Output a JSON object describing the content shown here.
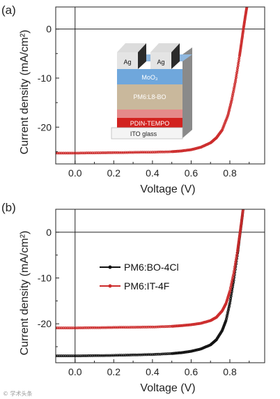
{
  "colors": {
    "black_series": "#111111",
    "red_series": "#cc2b2b",
    "axis": "#222222"
  },
  "watermark": "© 学术头条",
  "chart_data": [
    {
      "panel_label": "(a)",
      "type": "line",
      "xlabel": "Voltage (V)",
      "ylabel": "Current density (mA/cm²)",
      "xlim": [
        -0.1,
        0.98
      ],
      "ylim": [
        -27.5,
        4.5
      ],
      "xticks": [
        0.0,
        0.2,
        0.4,
        0.6,
        0.8
      ],
      "xtick_labels": [
        "0.0",
        "0.2",
        "0.4",
        "0.6",
        "0.8"
      ],
      "yticks": [
        0,
        -10,
        -20
      ],
      "ytick_labels": [
        "0",
        "-10",
        "-20"
      ],
      "zero_lines": true,
      "series": [
        {
          "color": "#cc2b2b",
          "x": [
            -0.1,
            0.0,
            0.1,
            0.2,
            0.3,
            0.4,
            0.5,
            0.55,
            0.6,
            0.65,
            0.7,
            0.73,
            0.76,
            0.79,
            0.81,
            0.83,
            0.85,
            0.86,
            0.87,
            0.88,
            0.89,
            0.9
          ],
          "y": [
            -25.3,
            -25.3,
            -25.25,
            -25.2,
            -25.15,
            -25.1,
            -25.0,
            -24.85,
            -24.6,
            -24.1,
            -23.2,
            -22.2,
            -20.6,
            -17.6,
            -14.4,
            -10.4,
            -5.5,
            -2.8,
            0.0,
            2.6,
            5.0,
            7.0
          ]
        }
      ],
      "inset": {
        "layers": [
          "Ag",
          "Ag",
          "MoO₃",
          "PM6:L8-BO",
          "PDIN-TEMPO",
          "ITO glass"
        ]
      }
    },
    {
      "panel_label": "(b)",
      "type": "line",
      "xlabel": "Voltage (V)",
      "ylabel": "Current density (mA/cm²)",
      "xlim": [
        -0.1,
        0.98
      ],
      "ylim": [
        -28.5,
        5.0
      ],
      "xticks": [
        0.0,
        0.2,
        0.4,
        0.6,
        0.8
      ],
      "xtick_labels": [
        "0.0",
        "0.2",
        "0.4",
        "0.6",
        "0.8"
      ],
      "yticks": [
        0,
        -10,
        -20
      ],
      "ytick_labels": [
        "0",
        "-10",
        "-20"
      ],
      "zero_lines": true,
      "legend": "center-left",
      "series": [
        {
          "name": "PM6:BO-4Cl",
          "color": "#111111",
          "x": [
            -0.1,
            0.0,
            0.1,
            0.2,
            0.3,
            0.4,
            0.5,
            0.55,
            0.6,
            0.65,
            0.7,
            0.73,
            0.76,
            0.78,
            0.8,
            0.82,
            0.84,
            0.85,
            0.86,
            0.87
          ],
          "y": [
            -27.0,
            -27.0,
            -26.95,
            -26.9,
            -26.8,
            -26.7,
            -26.5,
            -26.3,
            -26.0,
            -25.5,
            -24.6,
            -23.5,
            -21.5,
            -19.3,
            -15.5,
            -10.5,
            -4.6,
            -1.2,
            2.0,
            5.5
          ]
        },
        {
          "name": "PM6:IT-4F",
          "color": "#cc2b2b",
          "x": [
            -0.1,
            0.0,
            0.1,
            0.2,
            0.3,
            0.4,
            0.5,
            0.55,
            0.6,
            0.65,
            0.7,
            0.73,
            0.76,
            0.78,
            0.8,
            0.82,
            0.84,
            0.85,
            0.86,
            0.87
          ],
          "y": [
            -20.9,
            -20.9,
            -20.85,
            -20.8,
            -20.75,
            -20.7,
            -20.55,
            -20.4,
            -20.2,
            -19.9,
            -19.3,
            -18.6,
            -17.2,
            -15.6,
            -12.9,
            -9.0,
            -4.0,
            -0.9,
            2.2,
            5.5
          ]
        }
      ]
    }
  ]
}
